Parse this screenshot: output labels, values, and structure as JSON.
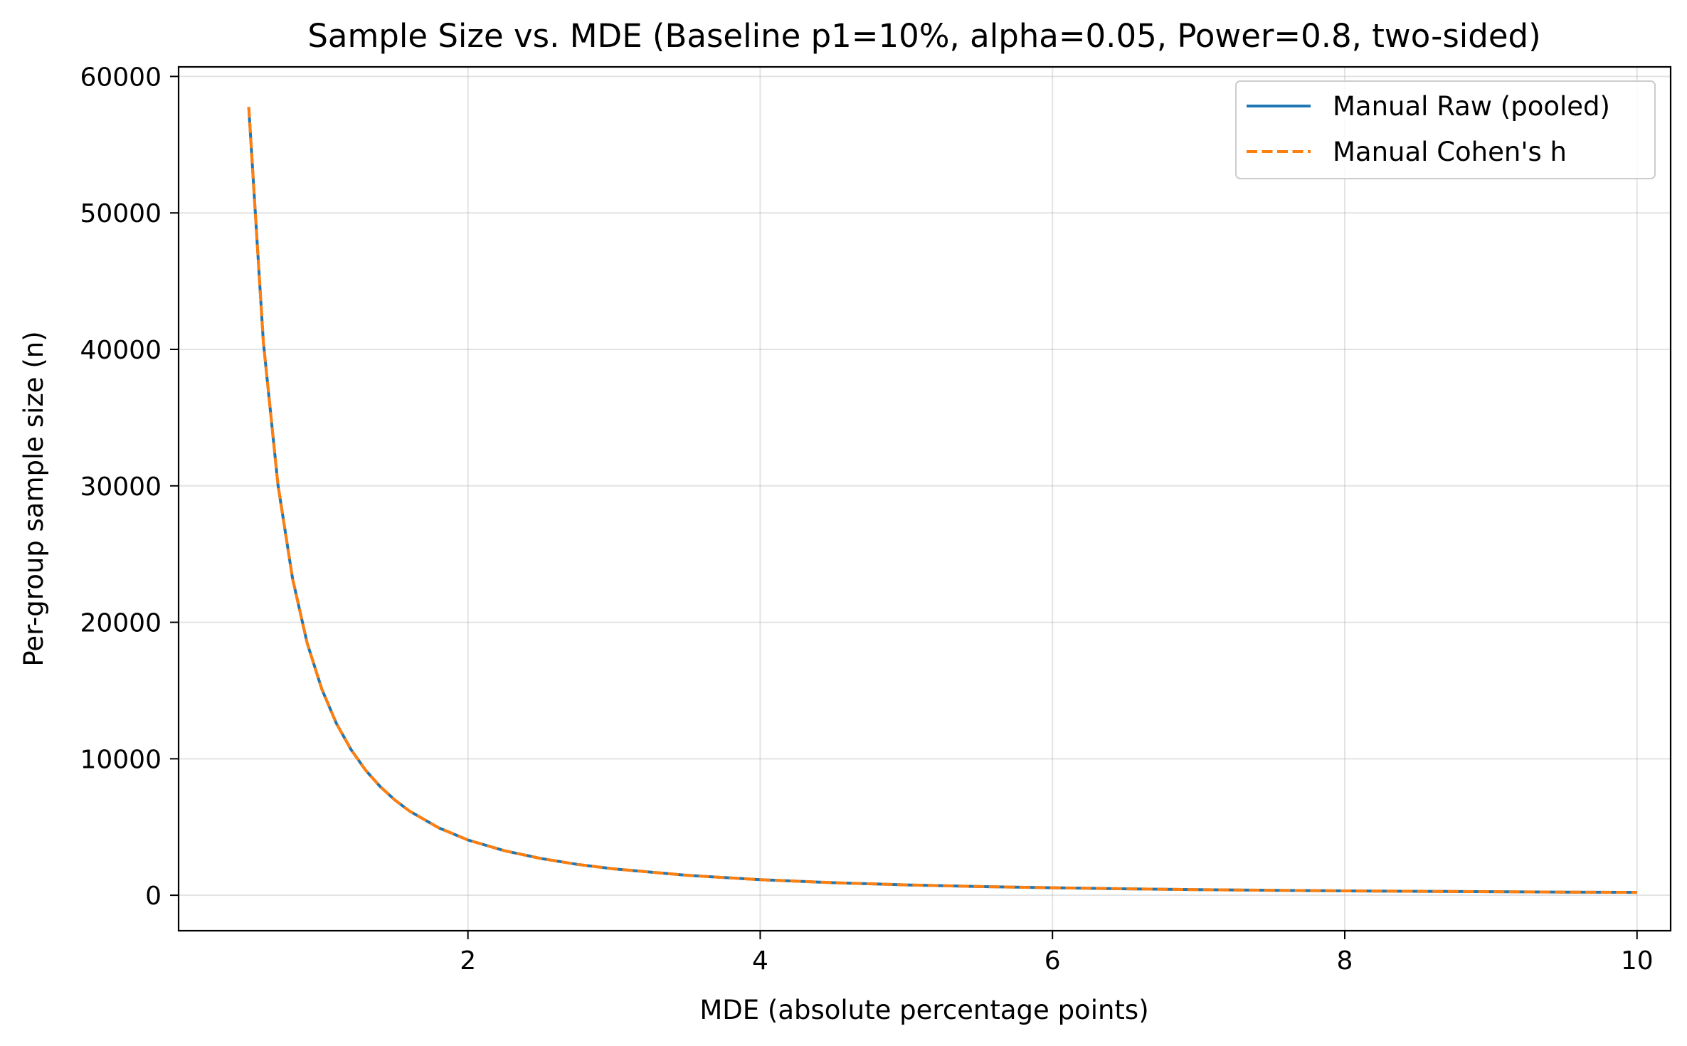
{
  "chart_data": {
    "type": "line",
    "title": "Sample Size vs. MDE (Baseline p1=10%, alpha=0.05, Power=0.8, two-sided)",
    "xlabel": "MDE (absolute percentage points)",
    "ylabel": "Per-group sample size (n)",
    "xlim": [
      0.02,
      10.23
    ],
    "ylim": [
      -2600,
      60700
    ],
    "xticks": [
      2,
      4,
      6,
      8,
      10
    ],
    "yticks": [
      0,
      10000,
      20000,
      30000,
      40000,
      50000,
      60000
    ],
    "xtick_labels": [
      "2",
      "4",
      "6",
      "8",
      "10"
    ],
    "ytick_labels": [
      "0",
      "10000",
      "20000",
      "30000",
      "40000",
      "50000",
      "60000"
    ],
    "grid": true,
    "legend_position": "top-right",
    "series": [
      {
        "name": "Manual Raw (pooled)",
        "color": "#1f77b4",
        "style": "solid",
        "x": [
          0.5,
          0.6,
          0.7,
          0.8,
          0.9,
          1.0,
          1.1,
          1.2,
          1.3,
          1.4,
          1.5,
          1.6,
          1.8,
          2.0,
          2.25,
          2.5,
          2.75,
          3.0,
          3.5,
          4.0,
          4.5,
          5.0,
          5.5,
          6.0,
          6.5,
          7.0,
          7.5,
          8.0,
          8.5,
          9.0,
          9.5,
          10.0
        ],
        "y": [
          57760,
          40560,
          30060,
          23200,
          18480,
          15100,
          12590,
          10670,
          9160,
          7960,
          6980,
          6170,
          4940,
          4050,
          3260,
          2690,
          2260,
          1930,
          1460,
          1140,
          920,
          760,
          640,
          550,
          470,
          410,
          360,
          320,
          290,
          260,
          230,
          210
        ]
      },
      {
        "name": "Manual Cohen's h",
        "color": "#ff7f0e",
        "style": "dashed",
        "x": [
          0.5,
          0.6,
          0.7,
          0.8,
          0.9,
          1.0,
          1.1,
          1.2,
          1.3,
          1.4,
          1.5,
          1.6,
          1.8,
          2.0,
          2.25,
          2.5,
          2.75,
          3.0,
          3.5,
          4.0,
          4.5,
          5.0,
          5.5,
          6.0,
          6.5,
          7.0,
          7.5,
          8.0,
          8.5,
          9.0,
          9.5,
          10.0
        ],
        "y": [
          57760,
          40560,
          30060,
          23200,
          18480,
          15100,
          12590,
          10670,
          9160,
          7960,
          6980,
          6170,
          4940,
          4050,
          3260,
          2690,
          2260,
          1930,
          1460,
          1140,
          920,
          760,
          640,
          550,
          470,
          410,
          360,
          320,
          290,
          260,
          230,
          210
        ]
      }
    ]
  }
}
